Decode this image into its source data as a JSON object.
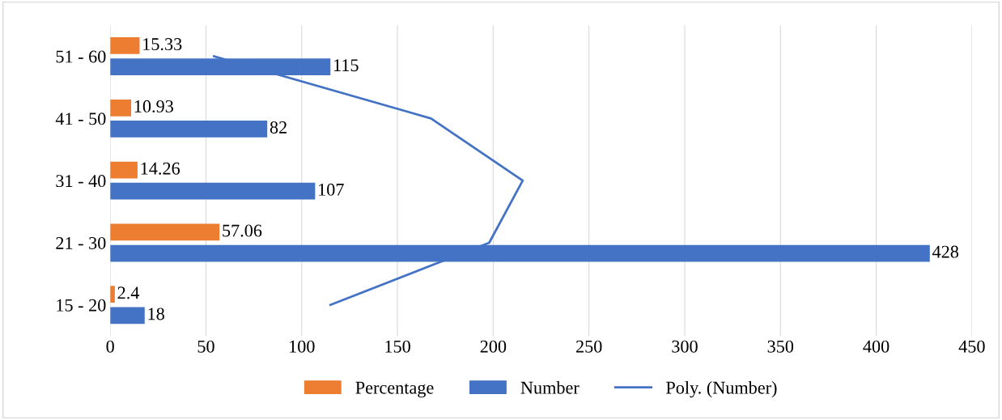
{
  "chart_data": {
    "type": "bar",
    "orientation": "horizontal",
    "categories": [
      "51 - 60",
      "41 - 50",
      "31 - 40",
      "21 - 30",
      "15 - 20"
    ],
    "series": [
      {
        "name": "Percentage",
        "color": "#ed7d31",
        "values": [
          15.33,
          10.93,
          14.26,
          57.06,
          2.4
        ],
        "value_labels": [
          "15.33",
          "10.93",
          "14.26",
          "57.06",
          "2.4"
        ]
      },
      {
        "name": "Number",
        "color": "#4472c4",
        "values": [
          115,
          82,
          107,
          428,
          18
        ],
        "value_labels": [
          "115",
          "82",
          "107",
          "428",
          "18"
        ]
      },
      {
        "name": "Poly. (Number)",
        "type": "line",
        "color": "#4472c4",
        "values": [
          54.2,
          167.5,
          215.4,
          197.9,
          115.0
        ]
      }
    ],
    "xlim": [
      0,
      450
    ],
    "xticks": [
      0,
      50,
      100,
      150,
      200,
      250,
      300,
      350,
      400,
      450
    ],
    "grid": "x",
    "legend": "bottom"
  }
}
